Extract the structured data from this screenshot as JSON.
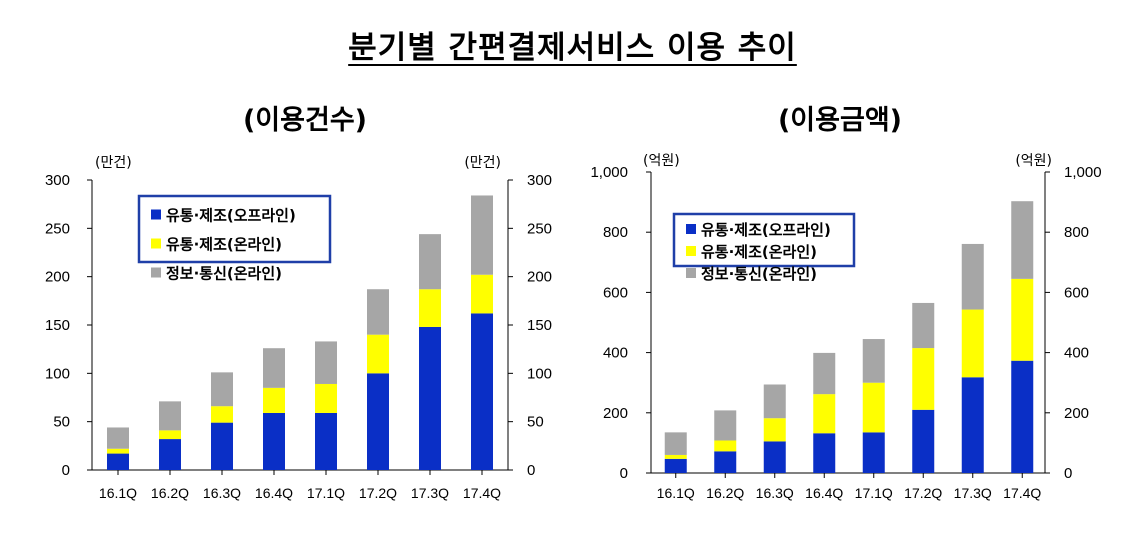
{
  "title": "분기별 간편결제서비스 이용 추이",
  "colors": {
    "offline": "#0a2fc6",
    "online_retail": "#ffff00",
    "telecom": "#a6a6a6",
    "legend_border": "#1f3fa8"
  },
  "chart_data": [
    {
      "type": "bar",
      "stacked": true,
      "title": "(이용건수)",
      "y_unit_left": "(만건)",
      "y_unit_right": "(만건)",
      "ylim": [
        0,
        300
      ],
      "yticks": [
        "0",
        "50",
        "100",
        "150",
        "200",
        "250",
        "300"
      ],
      "ytick_values": [
        0,
        50,
        100,
        150,
        200,
        250,
        300
      ],
      "categories": [
        "16.1Q",
        "16.2Q",
        "16.3Q",
        "16.4Q",
        "17.1Q",
        "17.2Q",
        "17.3Q",
        "17.4Q"
      ],
      "legend_position": "top-left",
      "series": [
        {
          "name": "유통·제조(오프라인)",
          "color_key": "offline",
          "values": [
            17,
            32,
            49,
            59,
            59,
            100,
            148,
            162
          ]
        },
        {
          "name": "유통·제조(온라인)",
          "color_key": "online_retail",
          "values": [
            5,
            9,
            17,
            26,
            30,
            40,
            39,
            40
          ]
        },
        {
          "name": "정보·통신(온라인)",
          "color_key": "telecom",
          "values": [
            22,
            30,
            35,
            41,
            44,
            47,
            57,
            82
          ]
        }
      ]
    },
    {
      "type": "bar",
      "stacked": true,
      "title": "(이용금액)",
      "y_unit_left": "(억원)",
      "y_unit_right": "(억원)",
      "ylim": [
        0,
        1000
      ],
      "yticks": [
        "0",
        "200",
        "400",
        "600",
        "800",
        "1,000"
      ],
      "ytick_values": [
        0,
        200,
        400,
        600,
        800,
        1000
      ],
      "categories": [
        "16.1Q",
        "16.2Q",
        "16.3Q",
        "16.4Q",
        "17.1Q",
        "17.2Q",
        "17.3Q",
        "17.4Q"
      ],
      "legend_position": "top-left",
      "series": [
        {
          "name": "유통·제조(오프라인)",
          "color_key": "offline",
          "values": [
            47,
            72,
            105,
            132,
            135,
            210,
            318,
            373
          ]
        },
        {
          "name": "유통·제조(온라인)",
          "color_key": "online_retail",
          "values": [
            13,
            36,
            77,
            130,
            165,
            205,
            225,
            272
          ]
        },
        {
          "name": "정보·통신(온라인)",
          "color_key": "telecom",
          "values": [
            75,
            100,
            112,
            137,
            145,
            150,
            218,
            258
          ]
        }
      ]
    }
  ]
}
